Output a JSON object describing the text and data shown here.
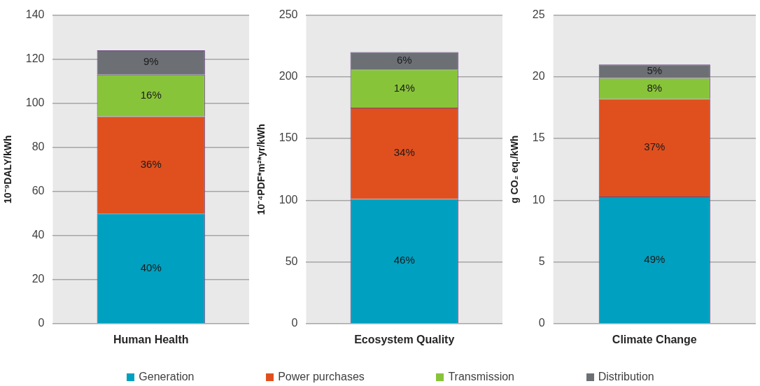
{
  "chart_data": [
    {
      "type": "bar",
      "stacked": true,
      "categories": [
        "Human Health"
      ],
      "ylabel": "10⁻⁹DALY/kWh",
      "ylim": [
        0,
        140
      ],
      "yticks": [
        0,
        20,
        40,
        60,
        80,
        100,
        120,
        140
      ],
      "grid": "y",
      "legend": "bottom",
      "series": [
        {
          "name": "Generation",
          "color": "#00a0c0",
          "values": [
            50
          ]
        },
        {
          "name": "Power purchases",
          "color": "#e0501e",
          "values": [
            44
          ]
        },
        {
          "name": "Transmission",
          "color": "#88c43a",
          "values": [
            19
          ]
        },
        {
          "name": "Distribution",
          "color": "#6c7075",
          "values": [
            11
          ]
        }
      ],
      "annotations": [
        "40%",
        "36%",
        "16%",
        "9%"
      ]
    },
    {
      "type": "bar",
      "stacked": true,
      "categories": [
        "Ecosystem Quality"
      ],
      "ylabel": "10⁻⁴PDF*m²*yr/kWh",
      "ylim": [
        0,
        250
      ],
      "yticks": [
        0,
        50,
        100,
        150,
        200,
        250
      ],
      "grid": "y",
      "series": [
        {
          "color": "#00a0c0",
          "values": [
            101
          ]
        },
        {
          "color": "#e0501e",
          "values": [
            74
          ]
        },
        {
          "color": "#88c43a",
          "values": [
            31
          ]
        },
        {
          "color": "#6c7075",
          "values": [
            14
          ]
        }
      ],
      "annotations": [
        "46%",
        "34%",
        "14%",
        "6%"
      ]
    },
    {
      "type": "bar",
      "stacked": true,
      "categories": [
        "Climate Change"
      ],
      "ylabel": "g CO₂ eq./kWh",
      "ylim": [
        0,
        25
      ],
      "yticks": [
        0,
        5,
        10,
        15,
        20,
        25
      ],
      "grid": "y",
      "series": [
        {
          "color": "#00a0c0",
          "values": [
            10.3
          ]
        },
        {
          "color": "#e0501e",
          "values": [
            7.9
          ]
        },
        {
          "color": "#88c43a",
          "values": [
            1.7
          ]
        },
        {
          "color": "#6c7075",
          "values": [
            1.1
          ]
        }
      ],
      "annotations": [
        "49%",
        "37%",
        "8%",
        "5%"
      ]
    }
  ]
}
